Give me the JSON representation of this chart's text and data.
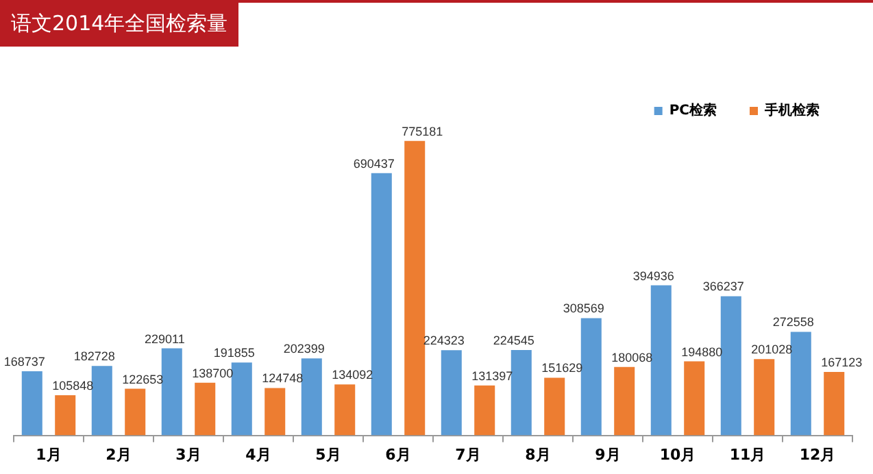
{
  "chart_data": {
    "type": "bar",
    "title": "语文2014年全国检索量",
    "categories": [
      "1月",
      "2月",
      "3月",
      "4月",
      "5月",
      "6月",
      "7月",
      "8月",
      "9月",
      "10月",
      "11月",
      "12月"
    ],
    "series": [
      {
        "name": "PC检索",
        "color": "#5b9bd5",
        "values": [
          168737,
          182728,
          229011,
          191855,
          202399,
          690437,
          224323,
          224545,
          308569,
          394936,
          366237,
          272558
        ]
      },
      {
        "name": "手机检索",
        "color": "#ed7d31",
        "values": [
          105848,
          122653,
          138700,
          124748,
          134092,
          775181,
          131397,
          151629,
          180068,
          194880,
          201028,
          167123
        ]
      }
    ],
    "data_labels": true,
    "legend": "top right"
  }
}
